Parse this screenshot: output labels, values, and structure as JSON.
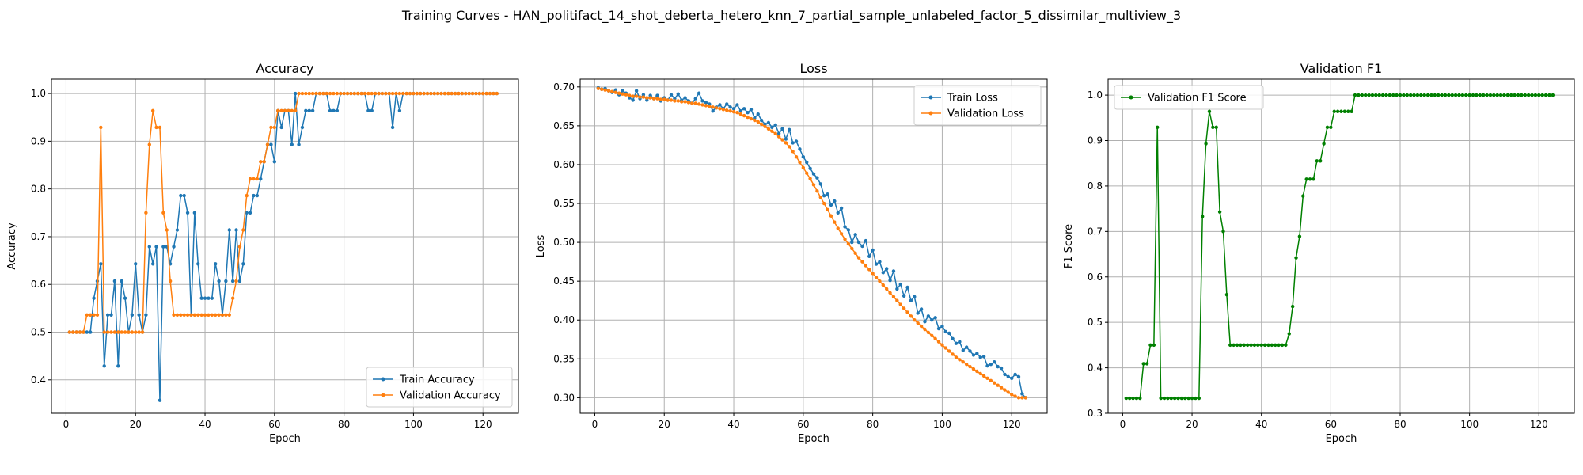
{
  "suptitle": "Training Curves - HAN_politifact_14_shot_deberta_hetero_knn_7_partial_sample_unlabeled_factor_5_dissimilar_multiview_3",
  "colors": {
    "blue": "#1f77b4",
    "orange": "#ff7f0e",
    "green": "#008000"
  },
  "chart_data": [
    {
      "type": "line",
      "title": "Accuracy",
      "xlabel": "Epoch",
      "ylabel": "Accuracy",
      "xlim": [
        -4.2,
        130.2
      ],
      "ylim": [
        0.33,
        1.03
      ],
      "xticks": [
        0,
        20,
        40,
        60,
        80,
        100,
        120
      ],
      "xtick_labels": [
        "0",
        "20",
        "40",
        "60",
        "80",
        "100",
        "120"
      ],
      "yticks": [
        0.4,
        0.5,
        0.6,
        0.7,
        0.8,
        0.9,
        1.0
      ],
      "ytick_labels": [
        "0.4",
        "0.5",
        "0.6",
        "0.7",
        "0.8",
        "0.9",
        "1.0"
      ],
      "grid": true,
      "legend_loc": "lower-right",
      "x_start": 1,
      "series": [
        {
          "name": "Train Accuracy",
          "color": "#1f77b4",
          "values": [
            0.5,
            0.5,
            0.5,
            0.5,
            0.5,
            0.5,
            0.5,
            0.571,
            0.607,
            0.643,
            0.429,
            0.536,
            0.536,
            0.607,
            0.429,
            0.607,
            0.571,
            0.5,
            0.536,
            0.643,
            0.536,
            0.5,
            0.536,
            0.679,
            0.643,
            0.679,
            0.357,
            0.679,
            0.679,
            0.643,
            0.679,
            0.714,
            0.786,
            0.786,
            0.75,
            0.536,
            0.75,
            0.643,
            0.571,
            0.571,
            0.571,
            0.571,
            0.643,
            0.607,
            0.536,
            0.607,
            0.714,
            0.607,
            0.714,
            0.607,
            0.643,
            0.75,
            0.75,
            0.786,
            0.786,
            0.821,
            0.857,
            0.893,
            0.893,
            0.857,
            0.964,
            0.929,
            0.964,
            0.964,
            0.893,
            1.0,
            0.893,
            0.929,
            0.964,
            0.964,
            0.964,
            1.0,
            1.0,
            1.0,
            1.0,
            0.964,
            0.964,
            0.964,
            1.0,
            1.0,
            1.0,
            1.0,
            1.0,
            1.0,
            1.0,
            1.0,
            0.964,
            0.964,
            1.0,
            1.0,
            1.0,
            1.0,
            1.0,
            0.929,
            1.0,
            0.964,
            1.0,
            1.0,
            1.0,
            1.0,
            1.0,
            1.0,
            1.0,
            1.0,
            1.0,
            1.0,
            1.0,
            1.0,
            1.0,
            1.0,
            1.0,
            1.0,
            1.0,
            1.0,
            1.0,
            1.0,
            1.0,
            1.0,
            1.0,
            1.0,
            1.0,
            1.0,
            1.0,
            1.0
          ]
        },
        {
          "name": "Validation Accuracy",
          "color": "#ff7f0e",
          "values": [
            0.5,
            0.5,
            0.5,
            0.5,
            0.5,
            0.536,
            0.536,
            0.536,
            0.536,
            0.929,
            0.5,
            0.5,
            0.5,
            0.5,
            0.5,
            0.5,
            0.5,
            0.5,
            0.5,
            0.5,
            0.5,
            0.5,
            0.75,
            0.893,
            0.964,
            0.929,
            0.929,
            0.75,
            0.714,
            0.607,
            0.536,
            0.536,
            0.536,
            0.536,
            0.536,
            0.536,
            0.536,
            0.536,
            0.536,
            0.536,
            0.536,
            0.536,
            0.536,
            0.536,
            0.536,
            0.536,
            0.536,
            0.571,
            0.607,
            0.679,
            0.714,
            0.786,
            0.821,
            0.821,
            0.821,
            0.857,
            0.857,
            0.893,
            0.929,
            0.929,
            0.964,
            0.964,
            0.964,
            0.964,
            0.964,
            0.964,
            1.0,
            1.0,
            1.0,
            1.0,
            1.0,
            1.0,
            1.0,
            1.0,
            1.0,
            1.0,
            1.0,
            1.0,
            1.0,
            1.0,
            1.0,
            1.0,
            1.0,
            1.0,
            1.0,
            1.0,
            1.0,
            1.0,
            1.0,
            1.0,
            1.0,
            1.0,
            1.0,
            1.0,
            1.0,
            1.0,
            1.0,
            1.0,
            1.0,
            1.0,
            1.0,
            1.0,
            1.0,
            1.0,
            1.0,
            1.0,
            1.0,
            1.0,
            1.0,
            1.0,
            1.0,
            1.0,
            1.0,
            1.0,
            1.0,
            1.0,
            1.0,
            1.0,
            1.0,
            1.0,
            1.0,
            1.0,
            1.0,
            1.0
          ]
        }
      ]
    },
    {
      "type": "line",
      "title": "Loss",
      "xlabel": "Epoch",
      "ylabel": "Loss",
      "xlim": [
        -4.2,
        130.2
      ],
      "ylim": [
        0.28,
        0.71
      ],
      "xticks": [
        0,
        20,
        40,
        60,
        80,
        100,
        120
      ],
      "xtick_labels": [
        "0",
        "20",
        "40",
        "60",
        "80",
        "100",
        "120"
      ],
      "yticks": [
        0.3,
        0.35,
        0.4,
        0.45,
        0.5,
        0.55,
        0.6,
        0.65,
        0.7
      ],
      "ytick_labels": [
        "0.30",
        "0.35",
        "0.40",
        "0.45",
        "0.50",
        "0.55",
        "0.60",
        "0.65",
        "0.70"
      ],
      "grid": true,
      "legend_loc": "upper-right",
      "x_start": 1,
      "series": [
        {
          "name": "Train Loss",
          "color": "#1f77b4",
          "values": [
            0.699,
            0.697,
            0.698,
            0.695,
            0.693,
            0.696,
            0.69,
            0.695,
            0.692,
            0.686,
            0.683,
            0.695,
            0.685,
            0.69,
            0.683,
            0.689,
            0.685,
            0.689,
            0.682,
            0.686,
            0.683,
            0.69,
            0.685,
            0.691,
            0.683,
            0.686,
            0.682,
            0.679,
            0.685,
            0.692,
            0.682,
            0.68,
            0.678,
            0.669,
            0.674,
            0.677,
            0.672,
            0.678,
            0.674,
            0.672,
            0.677,
            0.669,
            0.672,
            0.667,
            0.671,
            0.66,
            0.665,
            0.657,
            0.652,
            0.654,
            0.648,
            0.651,
            0.64,
            0.646,
            0.633,
            0.645,
            0.628,
            0.63,
            0.62,
            0.61,
            0.603,
            0.595,
            0.588,
            0.583,
            0.575,
            0.56,
            0.562,
            0.548,
            0.553,
            0.538,
            0.544,
            0.52,
            0.516,
            0.5,
            0.51,
            0.5,
            0.495,
            0.502,
            0.482,
            0.49,
            0.472,
            0.475,
            0.461,
            0.466,
            0.451,
            0.463,
            0.44,
            0.446,
            0.431,
            0.442,
            0.425,
            0.43,
            0.409,
            0.414,
            0.398,
            0.405,
            0.4,
            0.403,
            0.389,
            0.392,
            0.385,
            0.383,
            0.376,
            0.37,
            0.372,
            0.361,
            0.365,
            0.36,
            0.355,
            0.357,
            0.352,
            0.353,
            0.341,
            0.343,
            0.346,
            0.34,
            0.338,
            0.33,
            0.327,
            0.325,
            0.33,
            0.327,
            0.305,
            0.3
          ]
        },
        {
          "name": "Validation Loss",
          "color": "#ff7f0e",
          "values": [
            0.698,
            0.697,
            0.696,
            0.695,
            0.694,
            0.693,
            0.692,
            0.691,
            0.69,
            0.689,
            0.688,
            0.688,
            0.687,
            0.687,
            0.686,
            0.686,
            0.685,
            0.685,
            0.684,
            0.684,
            0.683,
            0.683,
            0.682,
            0.682,
            0.681,
            0.681,
            0.68,
            0.679,
            0.679,
            0.678,
            0.677,
            0.676,
            0.675,
            0.674,
            0.673,
            0.672,
            0.671,
            0.67,
            0.669,
            0.668,
            0.667,
            0.665,
            0.663,
            0.661,
            0.659,
            0.657,
            0.655,
            0.652,
            0.649,
            0.646,
            0.643,
            0.64,
            0.636,
            0.632,
            0.628,
            0.623,
            0.617,
            0.61,
            0.603,
            0.596,
            0.589,
            0.582,
            0.574,
            0.566,
            0.558,
            0.55,
            0.542,
            0.534,
            0.526,
            0.518,
            0.511,
            0.504,
            0.498,
            0.492,
            0.486,
            0.48,
            0.475,
            0.47,
            0.465,
            0.46,
            0.455,
            0.45,
            0.445,
            0.44,
            0.435,
            0.43,
            0.425,
            0.42,
            0.415,
            0.41,
            0.405,
            0.4,
            0.396,
            0.392,
            0.388,
            0.384,
            0.38,
            0.376,
            0.372,
            0.368,
            0.364,
            0.36,
            0.356,
            0.352,
            0.349,
            0.346,
            0.343,
            0.34,
            0.337,
            0.334,
            0.331,
            0.328,
            0.325,
            0.322,
            0.319,
            0.316,
            0.313,
            0.31,
            0.307,
            0.304,
            0.302,
            0.3,
            0.3,
            0.3
          ]
        }
      ]
    },
    {
      "type": "line",
      "title": "Validation F1",
      "xlabel": "Epoch",
      "ylabel": "F1 Score",
      "xlim": [
        -4.2,
        130.2
      ],
      "ylim": [
        0.3,
        1.035
      ],
      "xticks": [
        0,
        20,
        40,
        60,
        80,
        100,
        120
      ],
      "xtick_labels": [
        "0",
        "20",
        "40",
        "60",
        "80",
        "100",
        "120"
      ],
      "yticks": [
        0.3,
        0.4,
        0.5,
        0.6,
        0.7,
        0.8,
        0.9,
        1.0
      ],
      "ytick_labels": [
        "0.3",
        "0.4",
        "0.5",
        "0.6",
        "0.7",
        "0.8",
        "0.9",
        "1.0"
      ],
      "grid": true,
      "legend_loc": "upper-left",
      "x_start": 1,
      "series": [
        {
          "name": "Validation F1 Score",
          "color": "#008000",
          "values": [
            0.333,
            0.333,
            0.333,
            0.333,
            0.333,
            0.409,
            0.409,
            0.45,
            0.45,
            0.929,
            0.333,
            0.333,
            0.333,
            0.333,
            0.333,
            0.333,
            0.333,
            0.333,
            0.333,
            0.333,
            0.333,
            0.333,
            0.733,
            0.893,
            0.964,
            0.929,
            0.929,
            0.743,
            0.7,
            0.561,
            0.45,
            0.45,
            0.45,
            0.45,
            0.45,
            0.45,
            0.45,
            0.45,
            0.45,
            0.45,
            0.45,
            0.45,
            0.45,
            0.45,
            0.45,
            0.45,
            0.45,
            0.475,
            0.535,
            0.642,
            0.689,
            0.778,
            0.815,
            0.815,
            0.815,
            0.855,
            0.855,
            0.893,
            0.929,
            0.929,
            0.964,
            0.964,
            0.964,
            0.964,
            0.964,
            0.964,
            1.0,
            1.0,
            1.0,
            1.0,
            1.0,
            1.0,
            1.0,
            1.0,
            1.0,
            1.0,
            1.0,
            1.0,
            1.0,
            1.0,
            1.0,
            1.0,
            1.0,
            1.0,
            1.0,
            1.0,
            1.0,
            1.0,
            1.0,
            1.0,
            1.0,
            1.0,
            1.0,
            1.0,
            1.0,
            1.0,
            1.0,
            1.0,
            1.0,
            1.0,
            1.0,
            1.0,
            1.0,
            1.0,
            1.0,
            1.0,
            1.0,
            1.0,
            1.0,
            1.0,
            1.0,
            1.0,
            1.0,
            1.0,
            1.0,
            1.0,
            1.0,
            1.0,
            1.0,
            1.0,
            1.0,
            1.0,
            1.0,
            1.0
          ]
        }
      ]
    }
  ]
}
